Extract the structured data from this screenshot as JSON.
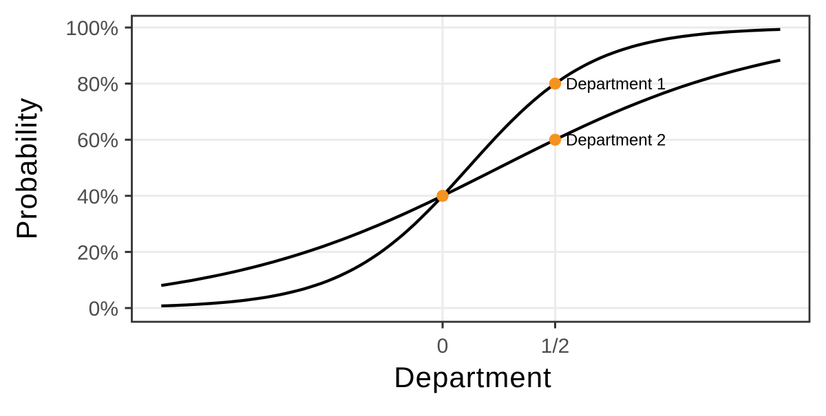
{
  "chart_data": {
    "type": "line",
    "title": "",
    "xlabel": "Department",
    "ylabel": "Probability",
    "x_range": [
      -1.25,
      1.5
    ],
    "y_range": [
      0,
      1
    ],
    "x_ticks": [
      {
        "value": 0,
        "label": "0"
      },
      {
        "value": 0.5,
        "label": "1/2"
      }
    ],
    "y_ticks": [
      {
        "value": 0.0,
        "label": "0%"
      },
      {
        "value": 0.2,
        "label": "20%"
      },
      {
        "value": 0.4,
        "label": "40%"
      },
      {
        "value": 0.6,
        "label": "60%"
      },
      {
        "value": 0.8,
        "label": "80%"
      },
      {
        "value": 1.0,
        "label": "100%"
      }
    ],
    "grid": "major-only",
    "legend": "none",
    "series": [
      {
        "name": "Department 1",
        "model": "logistic",
        "intercept": -0.4055,
        "slope": 3.5835,
        "color": "#000000",
        "x": [
          -1.25,
          -1.0,
          -0.75,
          -0.5,
          -0.25,
          0,
          0.25,
          0.5,
          0.75,
          1.0,
          1.25,
          1.5
        ],
        "y": [
          0.008,
          0.018,
          0.043,
          0.1,
          0.214,
          0.4,
          0.62,
          0.8,
          0.907,
          0.96,
          0.983,
          0.993
        ]
      },
      {
        "name": "Department 2",
        "model": "logistic",
        "intercept": -0.4055,
        "slope": 1.6219,
        "color": "#000000",
        "x": [
          -1.25,
          -1.0,
          -0.75,
          -0.5,
          -0.25,
          0,
          0.25,
          0.5,
          0.75,
          1.0,
          1.25,
          1.5
        ],
        "y": [
          0.081,
          0.116,
          0.165,
          0.229,
          0.308,
          0.4,
          0.5,
          0.6,
          0.692,
          0.771,
          0.835,
          0.884
        ]
      }
    ],
    "annotated_points": [
      {
        "x": 0.0,
        "y": 0.4,
        "label": "",
        "color": "#F6921E"
      },
      {
        "x": 0.5,
        "y": 0.8,
        "label": "Department 1",
        "color": "#F6921E"
      },
      {
        "x": 0.5,
        "y": 0.6,
        "label": "Department 2",
        "color": "#F6921E"
      }
    ],
    "colors": {
      "curve": "#000000",
      "point": "#F6921E",
      "grid": "#EBEBEB",
      "panel_border": "#333333",
      "tick": "#333333",
      "tick_label": "#4D4D4D",
      "axis_title": "#000000",
      "annotation_text": "#000000",
      "background": "#FFFFFF"
    }
  }
}
